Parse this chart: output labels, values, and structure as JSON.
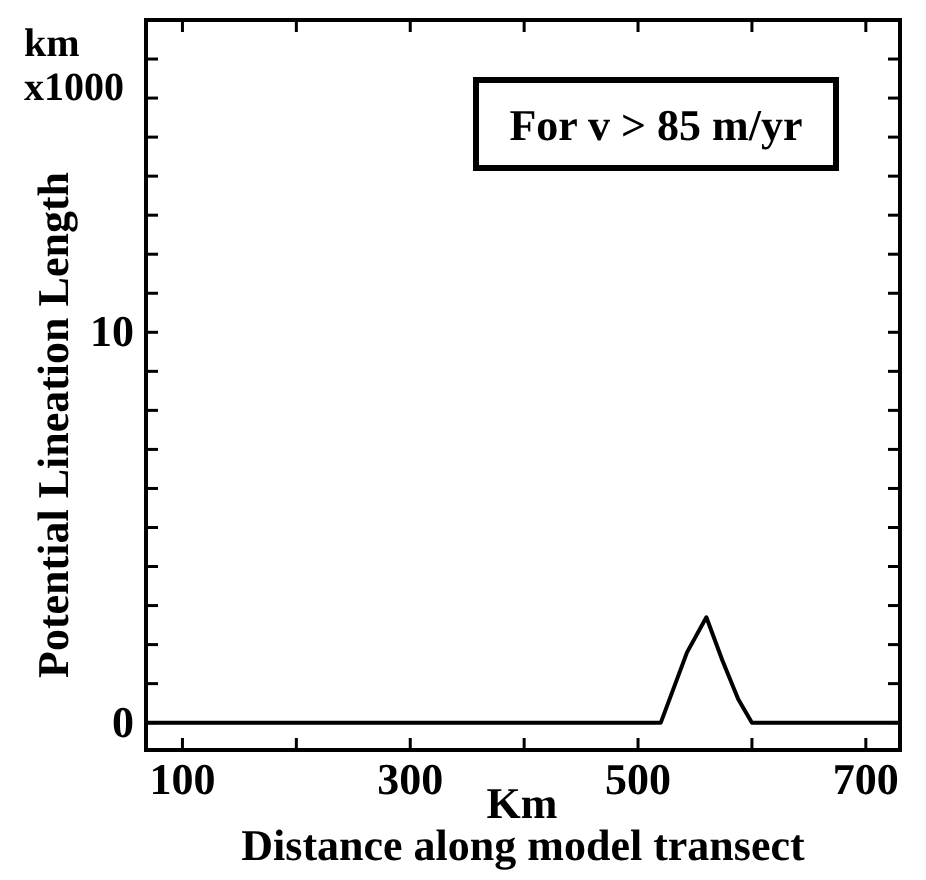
{
  "chart_data": {
    "type": "line",
    "xlabel": "Distance along model transect",
    "ylabel": "Potential Lineation Length",
    "annotations": [
      "km\nx1000",
      "Km",
      "For v > 85 m/yr"
    ],
    "x": [
      68,
      520,
      543,
      560,
      574,
      588,
      600,
      730
    ],
    "series": [
      {
        "color": "#000000",
        "values": [
          0,
          0,
          1.8,
          2.7,
          1.6,
          0.6,
          0,
          0
        ]
      }
    ],
    "xlim": [
      68,
      730
    ],
    "ylim": [
      -0.7,
      18
    ],
    "xticks": [
      100,
      {
        "value": 200,
        "label": null
      },
      300,
      {
        "value": 400,
        "label": null
      },
      500,
      {
        "value": 600,
        "label": null
      },
      700
    ],
    "yticks": [
      0,
      {
        "value": 1,
        "label": null
      },
      {
        "value": 2,
        "label": null
      },
      {
        "value": 3,
        "label": null
      },
      {
        "value": 4,
        "label": null
      },
      {
        "value": 5,
        "label": null
      },
      {
        "value": 6,
        "label": null
      },
      {
        "value": 7,
        "label": null
      },
      {
        "value": 8,
        "label": null
      },
      {
        "value": 9,
        "label": null
      },
      10,
      {
        "value": 11,
        "label": null
      },
      {
        "value": 12,
        "label": null
      },
      {
        "value": 13,
        "label": null
      },
      {
        "value": 14,
        "label": null
      },
      {
        "value": 15,
        "label": null
      },
      {
        "value": 16,
        "label": null
      },
      {
        "value": 17,
        "label": null
      }
    ],
    "grid": false,
    "marker": "none",
    "line_style": "solid"
  }
}
